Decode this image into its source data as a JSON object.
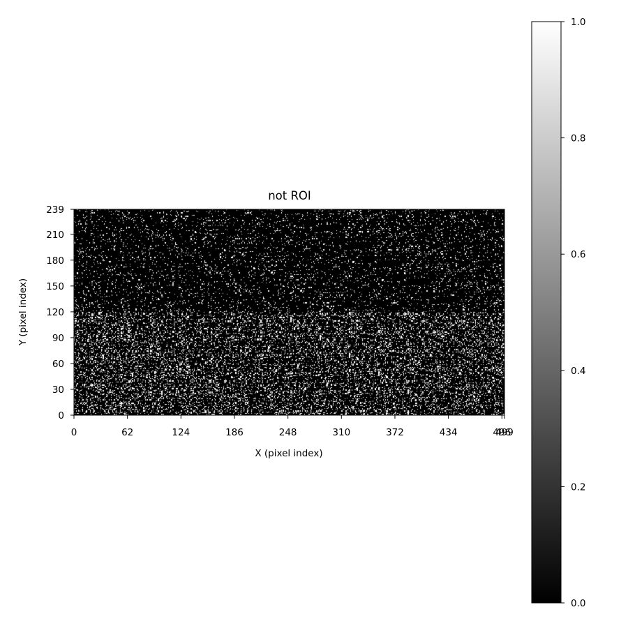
{
  "chart_data": {
    "type": "heatmap",
    "title": "not ROI",
    "xlabel": "X (pixel index)",
    "ylabel": "Y (pixel index)",
    "xlim": [
      0,
      499
    ],
    "ylim": [
      0,
      239
    ],
    "x_ticks": [
      "0",
      "62",
      "124",
      "186",
      "248",
      "310",
      "372",
      "434",
      "496",
      "499"
    ],
    "y_ticks": [
      "0",
      "30",
      "60",
      "90",
      "120",
      "150",
      "180",
      "210",
      "239"
    ],
    "colormap": "gray",
    "colorbar": {
      "range": [
        0.0,
        1.0
      ],
      "ticks": [
        "0.0",
        "0.2",
        "0.4",
        "0.6",
        "0.8",
        "1.0"
      ]
    },
    "values_binary": [
      0,
      1
    ],
    "approx_fraction_white": {
      "y_0_to_120": 0.17,
      "y_120_to_239": 0.06
    },
    "grid": false
  }
}
